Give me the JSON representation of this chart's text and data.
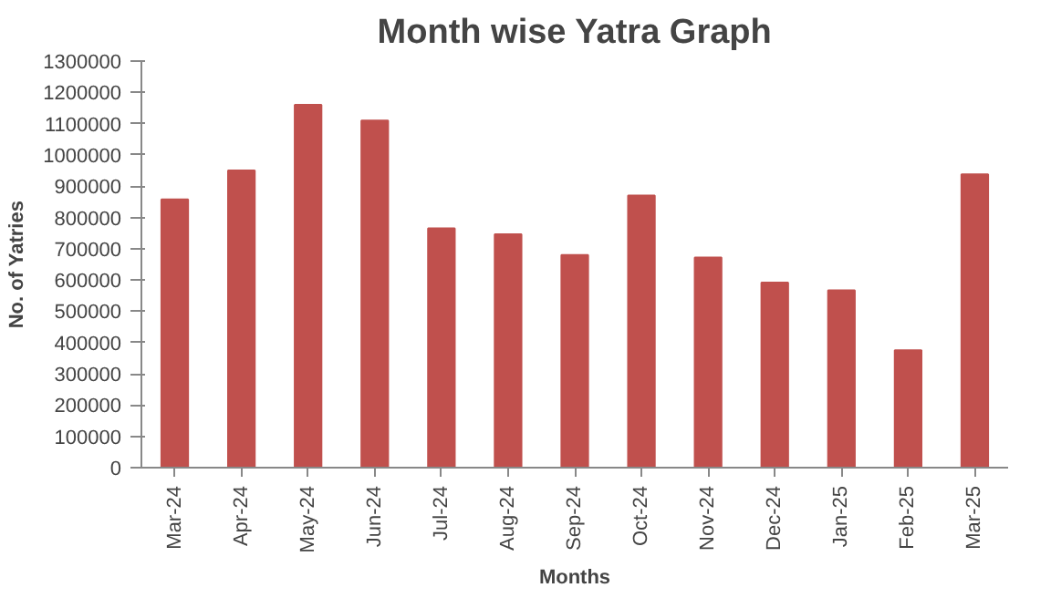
{
  "chart_data": {
    "type": "bar",
    "title": "Month wise Yatra Graph",
    "xlabel": "Months",
    "ylabel": "No. of Yatries",
    "categories": [
      "Mar-24",
      "Apr-24",
      "May-24",
      "Jun-24",
      "Jul-24",
      "Aug-24",
      "Sep-24",
      "Oct-24",
      "Nov-24",
      "Dec-24",
      "Jan-25",
      "Feb-25",
      "Mar-25"
    ],
    "values": [
      858000,
      950000,
      1160000,
      1110000,
      765000,
      746000,
      680000,
      870000,
      672000,
      592000,
      567000,
      375000,
      938000
    ],
    "color": "#c0504d",
    "ylim": [
      0,
      1300000
    ],
    "yticks": [
      0,
      100000,
      200000,
      300000,
      400000,
      500000,
      600000,
      700000,
      800000,
      900000,
      1000000,
      1100000,
      1200000,
      1300000
    ],
    "grid": false,
    "legend": false
  }
}
